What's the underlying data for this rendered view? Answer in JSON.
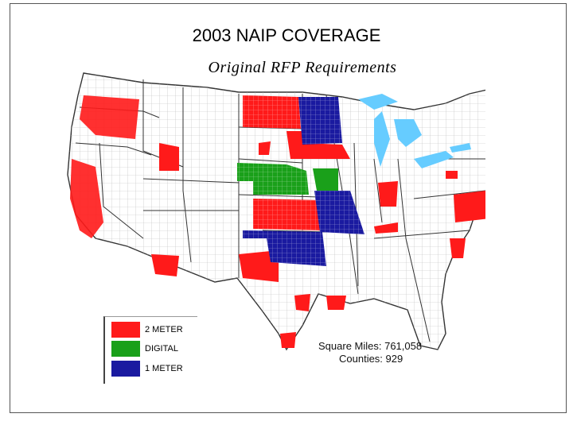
{
  "title": "2003 NAIP COVERAGE",
  "subtitle": "Original RFP Requirements",
  "legend": [
    {
      "label": "2 METER",
      "color": "#ff1a1a"
    },
    {
      "label": "DIGITAL",
      "color": "#1aa01a"
    },
    {
      "label": "1 METER",
      "color": "#1a1aa0"
    }
  ],
  "stats": {
    "square_miles": "Square Miles: 761,058",
    "counties": "Counties: 929"
  },
  "colors": {
    "two_meter": "#ff1a1a",
    "digital": "#1aa01a",
    "one_meter": "#1a1aa0",
    "water": "#66ccff",
    "outline": "#333333"
  }
}
